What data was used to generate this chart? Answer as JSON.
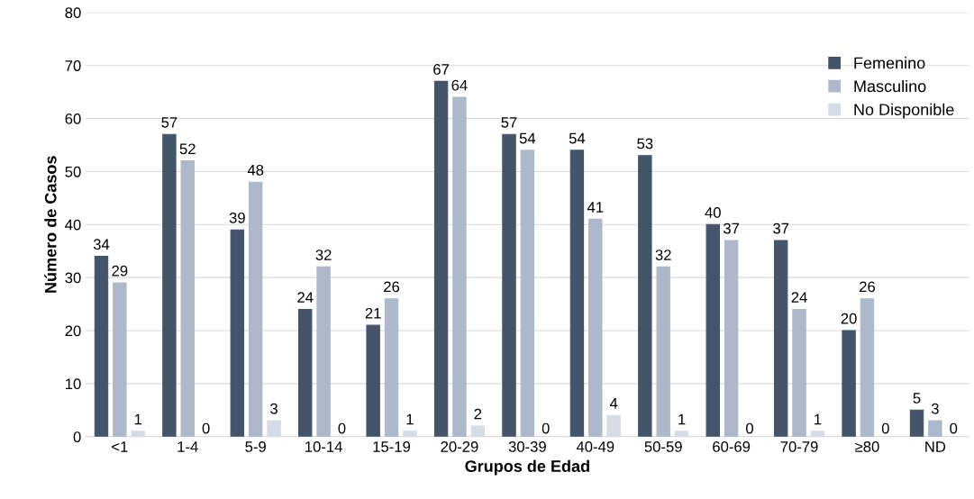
{
  "chart_data": {
    "type": "bar",
    "xlabel": "Grupos de Edad",
    "ylabel": "Número de Casos",
    "categories": [
      "<1",
      "1-4",
      "5-9",
      "10-14",
      "15-19",
      "20-29",
      "30-39",
      "40-49",
      "50-59",
      "60-69",
      "70-79",
      "≥80",
      "ND"
    ],
    "series": [
      {
        "name": "Femenino",
        "color": "#44546a",
        "values": [
          34,
          57,
          39,
          24,
          21,
          67,
          57,
          54,
          53,
          40,
          37,
          20,
          5
        ]
      },
      {
        "name": "Masculino",
        "color": "#adb9ca",
        "values": [
          29,
          52,
          48,
          32,
          26,
          64,
          54,
          41,
          32,
          37,
          24,
          26,
          3
        ]
      },
      {
        "name": "No Disponible",
        "color": "#d6dce5",
        "values": [
          1,
          0,
          3,
          0,
          1,
          2,
          0,
          4,
          1,
          0,
          1,
          0,
          0
        ]
      }
    ],
    "ylim": [
      0,
      80
    ],
    "yticks": [
      0,
      10,
      20,
      30,
      40,
      50,
      60,
      70,
      80
    ],
    "grid": "y",
    "legend": "top right",
    "data_labels": true
  }
}
